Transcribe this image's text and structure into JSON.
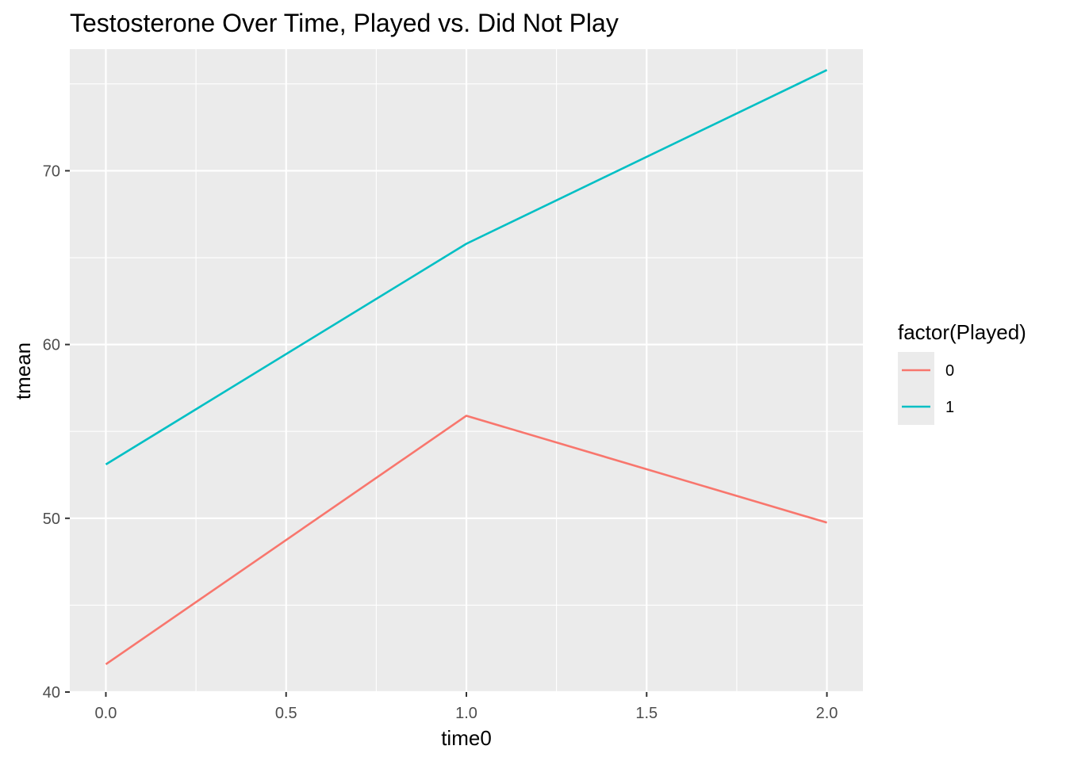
{
  "chart_data": {
    "type": "line",
    "title": "Testosterone Over Time, Played vs. Did Not Play",
    "xlabel": "time0",
    "ylabel": "tmean",
    "x": [
      0,
      1,
      2
    ],
    "xlim": [
      -0.1,
      2.1
    ],
    "ylim": [
      40,
      77
    ],
    "x_ticks": [
      0,
      0.5,
      1,
      1.5,
      2
    ],
    "x_tick_labels": [
      "0.0",
      "0.5",
      "1.0",
      "1.5",
      "2.0"
    ],
    "x_minor_ticks": [
      0.25,
      0.75,
      1.25,
      1.75
    ],
    "y_ticks": [
      40,
      50,
      60,
      70
    ],
    "y_tick_labels": [
      "40",
      "50",
      "60",
      "70"
    ],
    "y_minor_ticks": [
      45,
      55,
      65,
      75
    ],
    "grid": true,
    "legend": {
      "title": "factor(Played)",
      "placement": "right"
    },
    "series": [
      {
        "name": "0",
        "color": "#F8766D",
        "values": [
          41.6,
          55.9,
          49.75
        ]
      },
      {
        "name": "1",
        "color": "#00BFC4",
        "values": [
          53.1,
          65.8,
          75.8
        ]
      }
    ],
    "colors": {
      "panel_background": "#EBEBEB",
      "grid": "#FFFFFF",
      "legend_key_background": "#EBEBEB"
    }
  }
}
